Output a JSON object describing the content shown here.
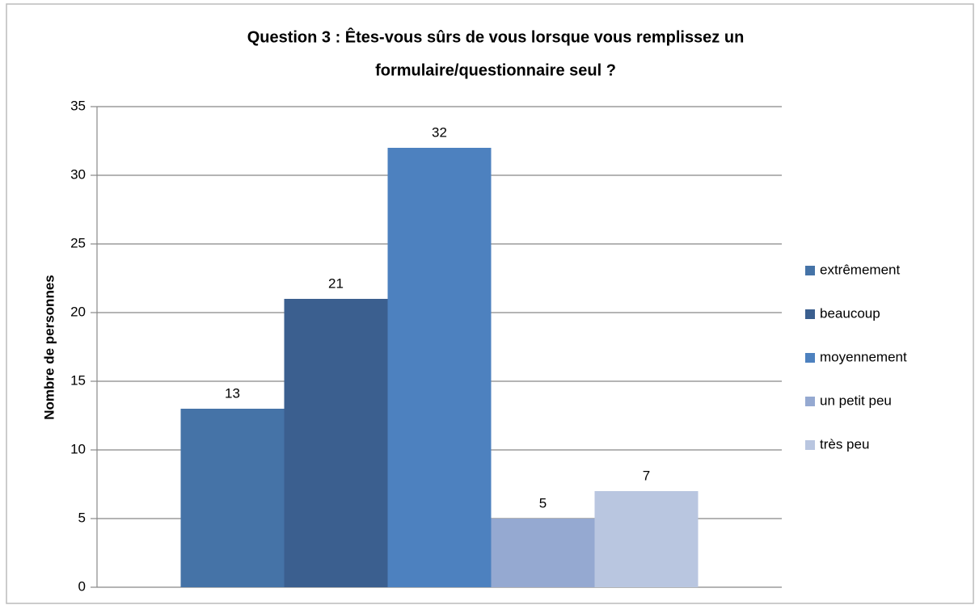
{
  "chart_data": {
    "type": "bar",
    "title": [
      "Question 3 : Êtes-vous sûrs de vous lorsque vous remplissez un",
      "formulaire/questionnaire seul ?"
    ],
    "y_label": "Nombre de personnes",
    "categories": [
      null
    ],
    "series": [
      {
        "name": "extrêmement",
        "color": "#4573a7",
        "values": [
          13
        ]
      },
      {
        "name": "beaucoup",
        "color": "#3b5f8f",
        "values": [
          21
        ]
      },
      {
        "name": "moyennement",
        "color": "#4d81bf",
        "values": [
          32
        ]
      },
      {
        "name": "un petit peu",
        "color": "#95a9d1",
        "values": [
          5
        ]
      },
      {
        "name": "très peu",
        "color": "#b9c6e0",
        "values": [
          7
        ]
      }
    ],
    "ylim": [
      0,
      35
    ],
    "yticks": [
      0,
      5,
      10,
      15,
      20,
      25,
      30,
      35
    ],
    "grid": true,
    "legend": "right"
  }
}
